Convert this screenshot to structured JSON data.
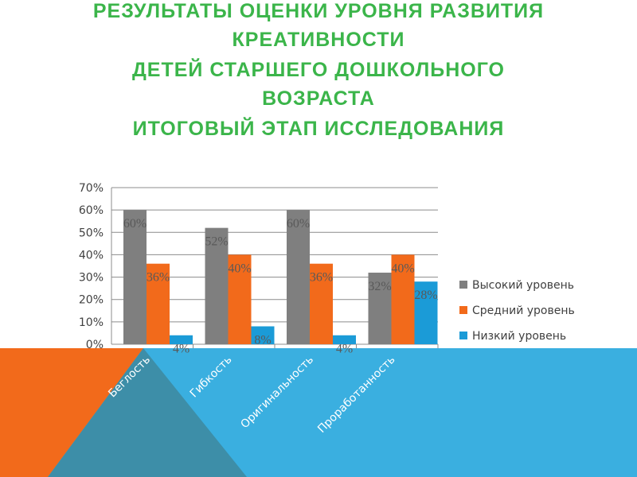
{
  "chart_data": {
    "type": "bar",
    "title_lines": [
      "РЕЗУЛЬТАТЫ ОЦЕНКИ УРОВНЯ РАЗВИТИЯ",
      "КРЕАТИВНОСТИ",
      "ДЕТЕЙ СТАРШЕГО  ДОШКОЛЬНОГО",
      "ВОЗРАСТА",
      "ИТОГОВЫЙ ЭТАП ИССЛЕДОВАНИЯ"
    ],
    "categories": [
      "Беглость",
      "Гибкость",
      "Оригинальность",
      "Проработанность"
    ],
    "series": [
      {
        "name": "Высокий уровень",
        "color": "#7f7f7f",
        "values": [
          60,
          52,
          60,
          32
        ],
        "value_labels": [
          "60%",
          "52%",
          "60%",
          "32%"
        ]
      },
      {
        "name": "Средний уровень",
        "color": "#f26a1b",
        "values": [
          36,
          40,
          36,
          40
        ],
        "value_labels": [
          "36%",
          "40%",
          "36%",
          "40%"
        ]
      },
      {
        "name": "Низкий уровень",
        "color": "#1b9bd7",
        "values": [
          4,
          8,
          4,
          28
        ],
        "value_labels": [
          "4%",
          "8%",
          "4%",
          "28%"
        ]
      }
    ],
    "ylim": [
      0,
      70
    ],
    "yticks": [
      {
        "value": 0,
        "label": "0%"
      },
      {
        "value": 10,
        "label": "10%"
      },
      {
        "value": 20,
        "label": "20%"
      },
      {
        "value": 30,
        "label": "30%"
      },
      {
        "value": 40,
        "label": "40%"
      },
      {
        "value": 50,
        "label": "50%"
      },
      {
        "value": 60,
        "label": "60%"
      },
      {
        "value": 70,
        "label": "70%"
      }
    ],
    "grid": true,
    "legend": "right"
  }
}
